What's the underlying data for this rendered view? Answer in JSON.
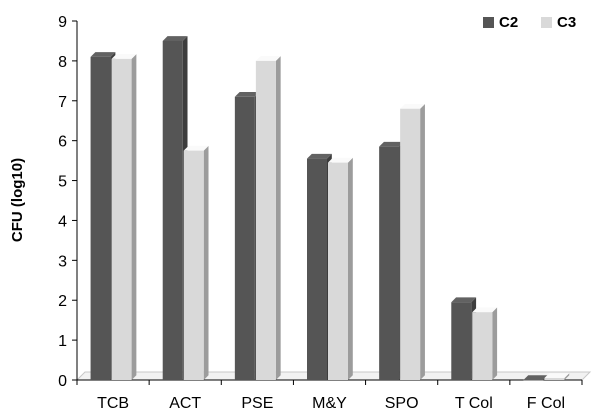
{
  "chart_data": {
    "type": "bar",
    "title": "",
    "xlabel": "",
    "ylabel": "CFU (log10)",
    "categories": [
      "TCB",
      "ACT",
      "PSE",
      "M&Y",
      "SPO",
      "T Col",
      "F Col"
    ],
    "series": [
      {
        "name": "C2",
        "color": "#555555",
        "values": [
          8.1,
          8.5,
          7.1,
          5.55,
          5.85,
          1.95,
          0.0
        ]
      },
      {
        "name": "C3",
        "color": "#d9d9d9",
        "values": [
          8.05,
          5.75,
          8.0,
          5.45,
          6.8,
          1.7,
          0.05
        ]
      }
    ],
    "ylim": [
      0,
      9
    ],
    "yticks": [
      "0",
      "1",
      "2",
      "3",
      "4",
      "5",
      "6",
      "7",
      "8",
      "9"
    ],
    "grid": false,
    "legend_position": "top-right",
    "style": "3d-column"
  }
}
